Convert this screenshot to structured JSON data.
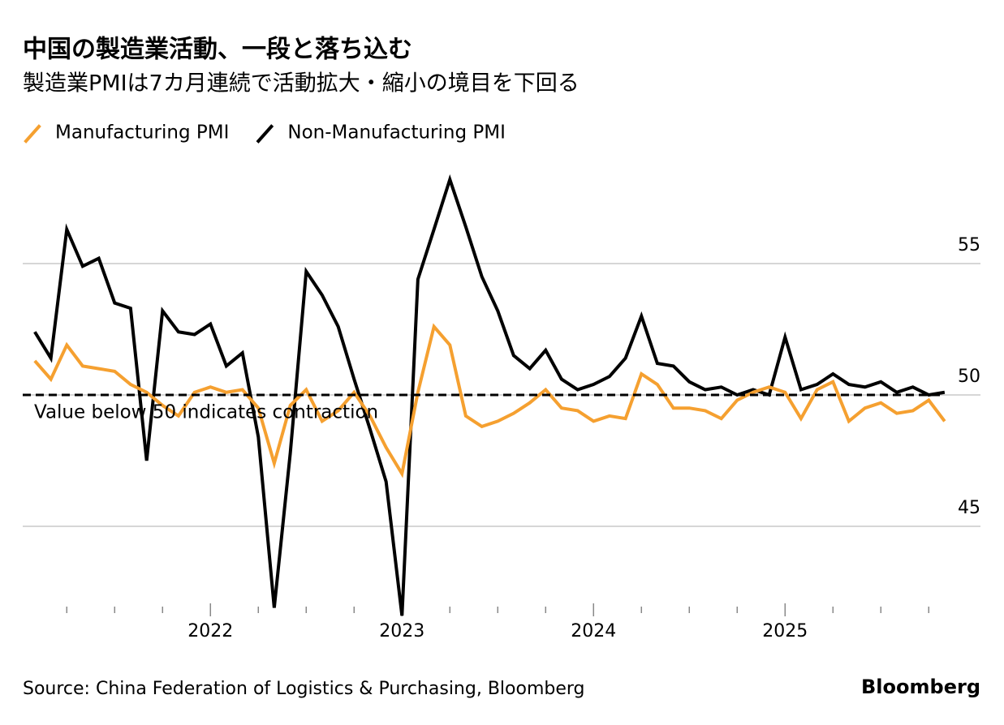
{
  "chart_data": {
    "type": "line",
    "title": "中国の製造業活動、一段と落ち込む",
    "subtitle": "製造業PMIは7カ月連続で活動拡大・縮小の境目を下回る",
    "source": "Source: China Federation of Logistics & Purchasing, Bloomberg",
    "brand": "Bloomberg",
    "annotation": "Value below 50 indicates contraction",
    "reference_line": 50,
    "x": [
      2021.083,
      2021.167,
      2021.25,
      2021.333,
      2021.417,
      2021.5,
      2021.583,
      2021.667,
      2021.75,
      2021.833,
      2021.917,
      2022.0,
      2022.083,
      2022.167,
      2022.25,
      2022.333,
      2022.417,
      2022.5,
      2022.583,
      2022.667,
      2022.75,
      2022.833,
      2022.917,
      2023.0,
      2023.083,
      2023.167,
      2023.25,
      2023.333,
      2023.417,
      2023.5,
      2023.583,
      2023.667,
      2023.75,
      2023.833,
      2023.917,
      2024.0,
      2024.083,
      2024.167,
      2024.25,
      2024.333,
      2024.417,
      2024.5,
      2024.583,
      2024.667,
      2024.75,
      2024.833,
      2024.917,
      2025.0,
      2025.083,
      2025.167,
      2025.25,
      2025.333,
      2025.417,
      2025.5,
      2025.583,
      2025.667,
      2025.75,
      2025.833
    ],
    "series": [
      {
        "name": "Non-Manufacturing PMI",
        "color": "#000000",
        "values": [
          52.4,
          51.4,
          56.3,
          54.9,
          55.2,
          53.5,
          53.3,
          47.5,
          53.2,
          52.4,
          52.3,
          52.7,
          51.1,
          51.6,
          48.4,
          41.9,
          47.8,
          54.7,
          53.8,
          52.6,
          50.6,
          48.7,
          46.7,
          41.6,
          54.4,
          56.3,
          58.2,
          56.4,
          54.5,
          53.2,
          51.5,
          51.0,
          51.7,
          50.6,
          50.2,
          50.4,
          50.7,
          51.4,
          53.0,
          51.2,
          51.1,
          50.5,
          50.2,
          50.3,
          50.0,
          50.2,
          50.0,
          52.2,
          50.2,
          50.4,
          50.8,
          50.4,
          50.3,
          50.5,
          50.1,
          50.3,
          50.0,
          50.1
        ]
      },
      {
        "name": "Manufacturing PMI",
        "color": "#f5a030",
        "values": [
          51.3,
          50.6,
          51.9,
          51.1,
          51.0,
          50.9,
          50.4,
          50.1,
          49.6,
          49.2,
          50.1,
          50.3,
          50.1,
          50.2,
          49.5,
          47.4,
          49.6,
          50.2,
          49.0,
          49.4,
          50.1,
          49.2,
          48.0,
          47.0,
          50.1,
          52.6,
          51.9,
          49.2,
          48.8,
          49.0,
          49.3,
          49.7,
          50.2,
          49.5,
          49.4,
          49.0,
          49.2,
          49.1,
          50.8,
          50.4,
          49.5,
          49.5,
          49.4,
          49.1,
          49.8,
          50.1,
          50.3,
          50.1,
          49.1,
          50.2,
          50.5,
          49.0,
          49.5,
          49.7,
          49.3,
          49.4,
          49.8,
          49.0
        ]
      }
    ],
    "legend_order": [
      1,
      0
    ],
    "xlim": [
      2021.02,
      2026.02
    ],
    "xticks": [
      2022,
      2023,
      2024,
      2025
    ],
    "xminorticks": [
      2021.25,
      2021.5,
      2021.75,
      2022.25,
      2022.5,
      2022.75,
      2023.25,
      2023.5,
      2023.75,
      2024.25,
      2024.5,
      2024.75,
      2025.25,
      2025.5,
      2025.75
    ],
    "ylim": [
      41.5,
      58.5
    ],
    "yticks": [
      45,
      50,
      55
    ],
    "grid": true
  }
}
